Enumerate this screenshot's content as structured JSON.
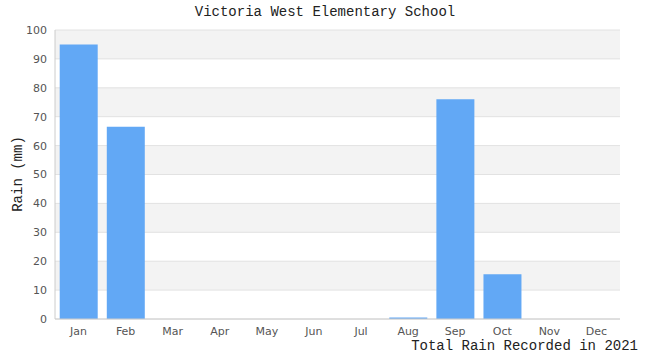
{
  "chart_data": {
    "type": "bar",
    "title": "Victoria West Elementary School",
    "xlabel": "Total Rain Recorded in 2021",
    "ylabel": "Rain (mm)",
    "categories": [
      "Jan",
      "Feb",
      "Mar",
      "Apr",
      "May",
      "Jun",
      "Jul",
      "Aug",
      "Sep",
      "Oct",
      "Nov",
      "Dec"
    ],
    "values": [
      95,
      66.5,
      0,
      0,
      0,
      0,
      0,
      0.5,
      76,
      15.5,
      0,
      0
    ],
    "color": "#62a8f5",
    "ylim": [
      0,
      100
    ],
    "yticks": [
      0,
      10,
      20,
      30,
      40,
      50,
      60,
      70,
      80,
      90,
      100
    ],
    "grid": true
  }
}
